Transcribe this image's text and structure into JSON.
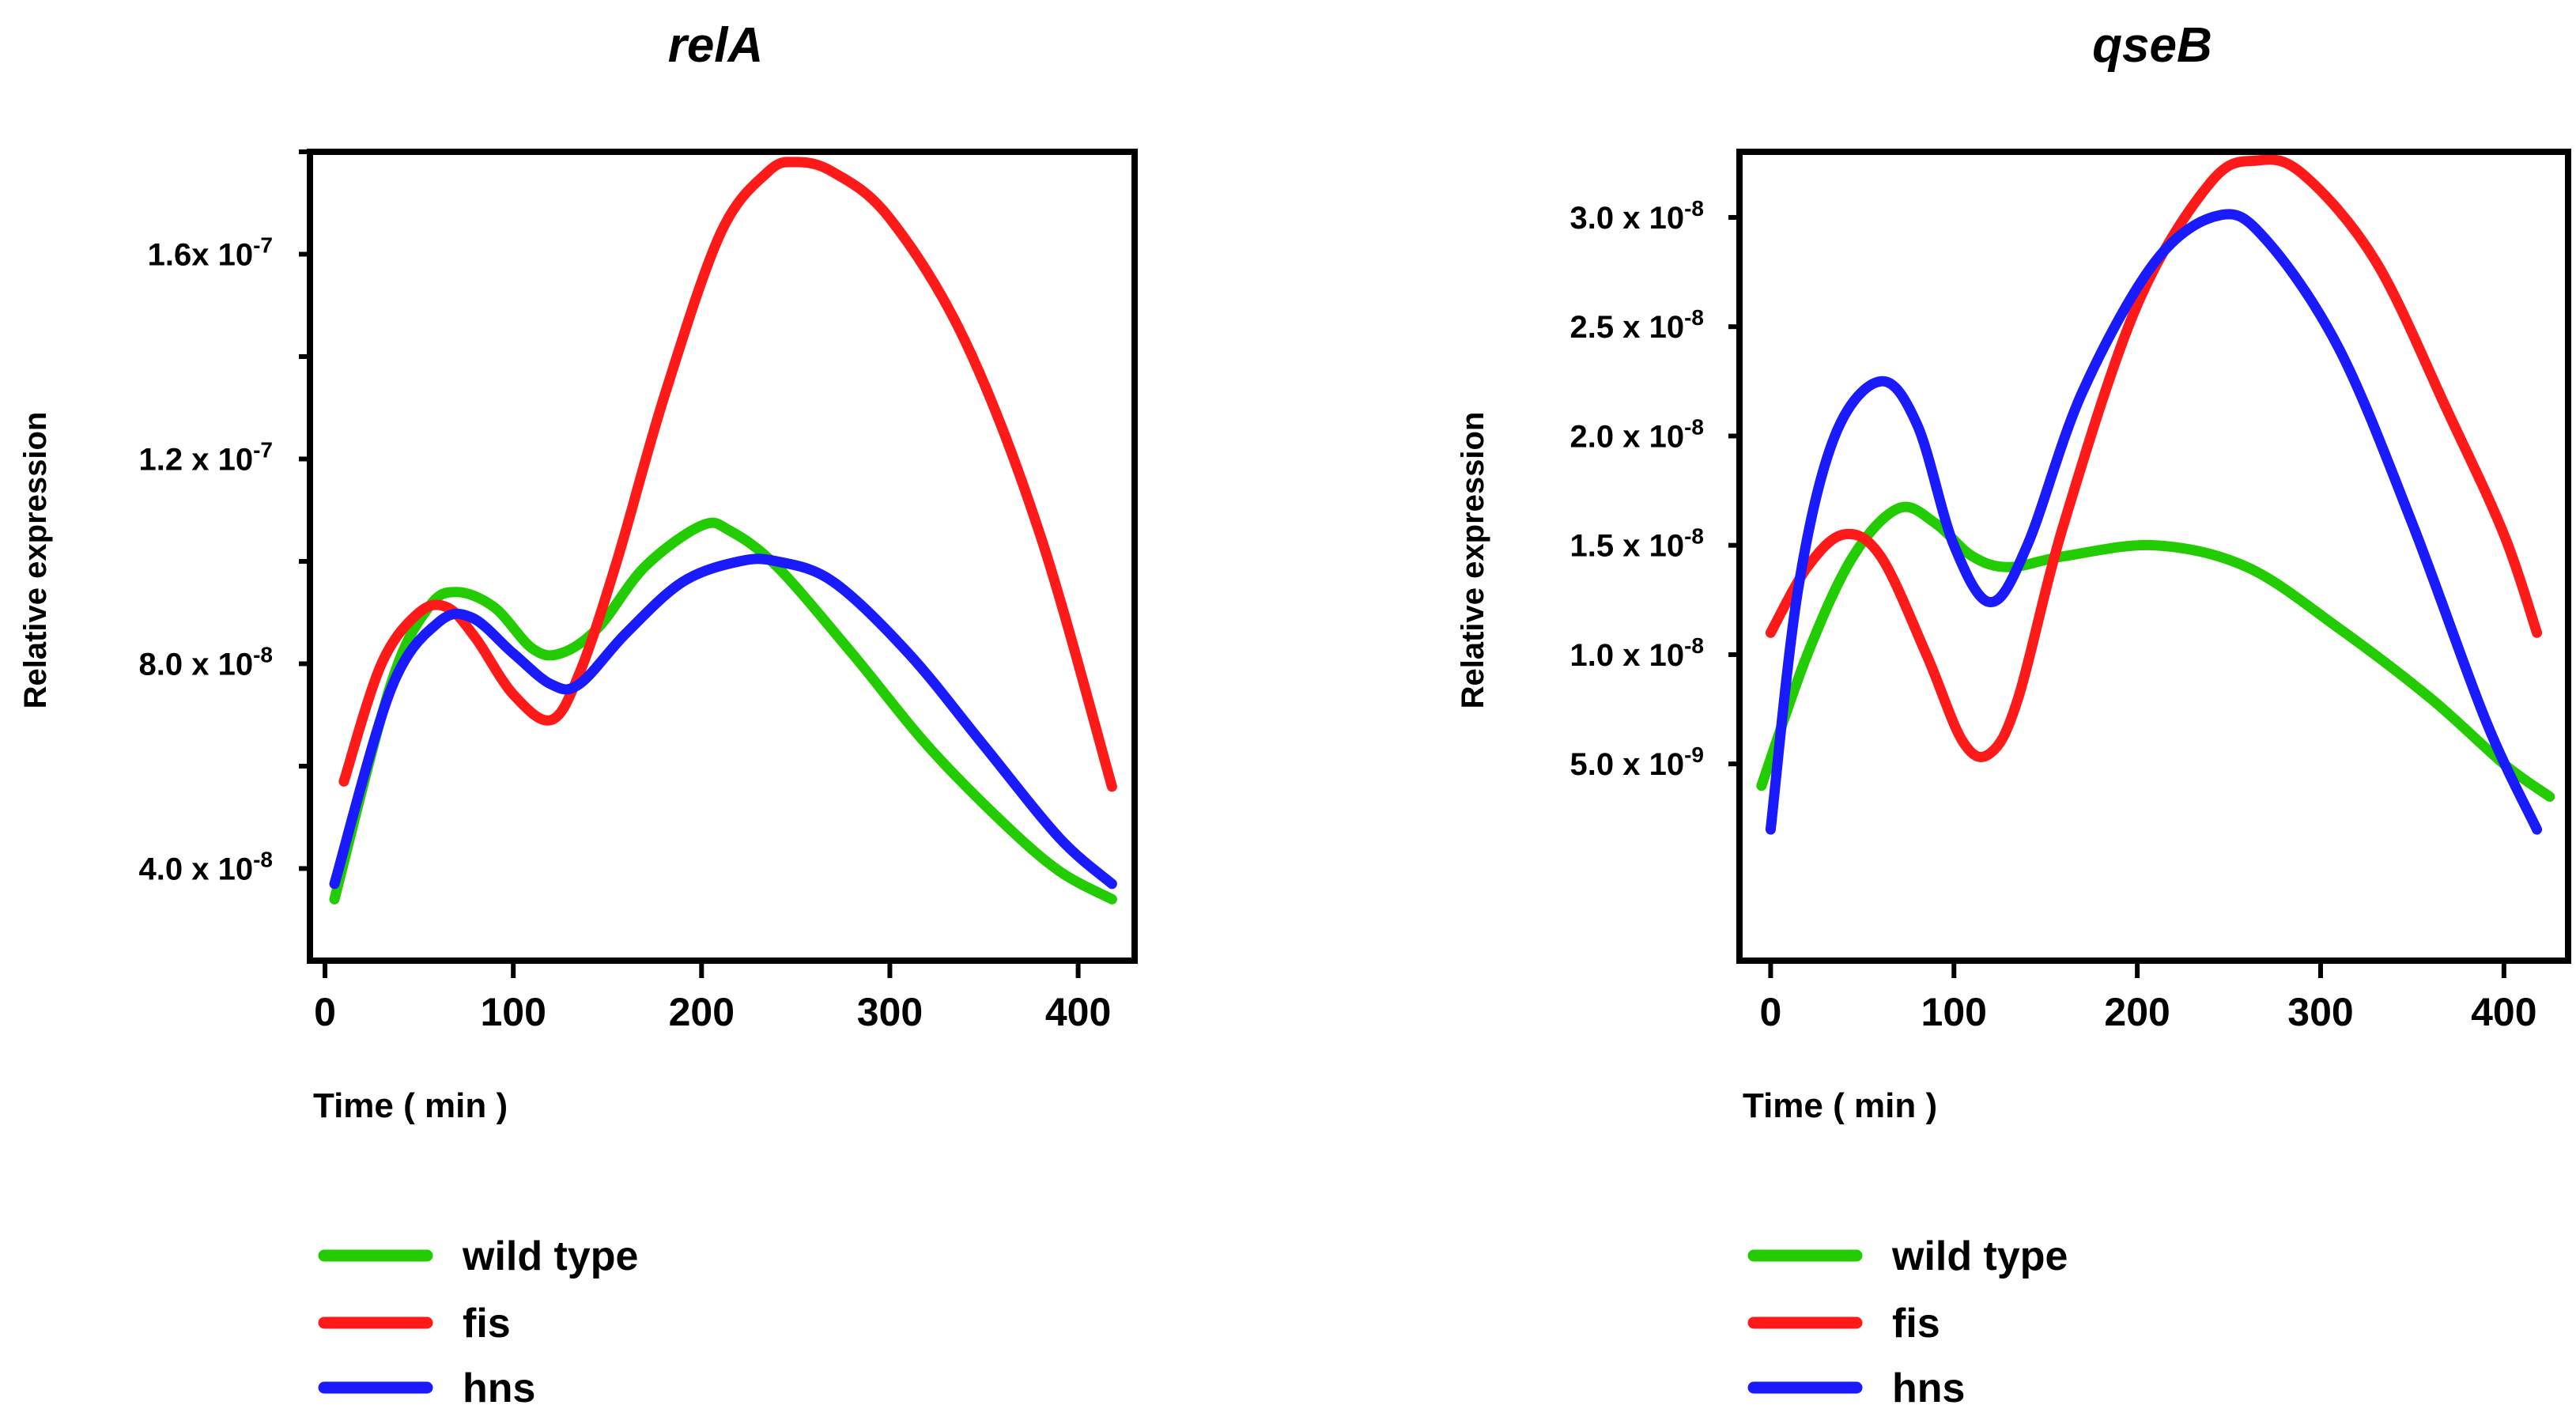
{
  "chart_data": [
    {
      "type": "line",
      "title": "relA",
      "xlabel": "Time ( min )",
      "ylabel": "Relative expression",
      "xlim": [
        -8,
        430
      ],
      "ylim": [
        2.2e-08,
        1.8e-07
      ],
      "xticks": [
        0,
        100,
        200,
        300,
        400
      ],
      "xtick_labels": [
        "0",
        "100",
        "200",
        "300",
        "400"
      ],
      "yticks": [
        4e-08,
        8e-08,
        1.2e-07,
        1.6e-07
      ],
      "ytick_labels": [
        {
          "mantissa": "4.0 x 10",
          "exponent": "-8"
        },
        {
          "mantissa": "8.0 x 10",
          "exponent": "-8"
        },
        {
          "mantissa": "1.2 x 10",
          "exponent": "-7"
        },
        {
          "mantissa": "1.6x 10",
          "exponent": "-7"
        }
      ],
      "yminor": [
        2e-08,
        6e-08,
        1e-07,
        1.4e-07,
        1.8e-07
      ],
      "series": [
        {
          "name": "wild type",
          "color": "#22cc00",
          "x": [
            5,
            35,
            55,
            70,
            90,
            110,
            125,
            145,
            170,
            200,
            215,
            240,
            280,
            320,
            360,
            390,
            418
          ],
          "y": [
            3.4e-08,
            7.6e-08,
            9.1e-08,
            9.4e-08,
            9.1e-08,
            8.3e-08,
            8.2e-08,
            8.7e-08,
            9.9e-08,
            1.07e-07,
            1.06e-07,
            9.9e-08,
            8.2e-08,
            6.4e-08,
            4.9e-08,
            3.95e-08,
            3.4e-08
          ]
        },
        {
          "name": "fis",
          "color": "#ff1a1a",
          "x": [
            10,
            30,
            50,
            65,
            80,
            100,
            120,
            135,
            155,
            180,
            210,
            235,
            250,
            270,
            300,
            340,
            380,
            418
          ],
          "y": [
            5.7e-08,
            8e-08,
            9e-08,
            9.1e-08,
            8.5e-08,
            7.4e-08,
            6.9e-08,
            7.8e-08,
            1e-07,
            1.32e-07,
            1.64e-07,
            1.76e-07,
            1.78e-07,
            1.76e-07,
            1.67e-07,
            1.43e-07,
            1.05e-07,
            5.6e-08
          ]
        },
        {
          "name": "hns",
          "color": "#1a1aff",
          "x": [
            5,
            35,
            60,
            78,
            100,
            120,
            135,
            160,
            190,
            220,
            240,
            270,
            310,
            350,
            390,
            418
          ],
          "y": [
            3.7e-08,
            7.5e-08,
            8.8e-08,
            8.9e-08,
            8.2e-08,
            7.6e-08,
            7.6e-08,
            8.6e-08,
            9.6e-08,
            1e-07,
            1e-07,
            9.6e-08,
            8.2e-08,
            6.4e-08,
            4.6e-08,
            3.7e-08
          ]
        }
      ],
      "legend": [
        "wild type",
        "fis",
        "hns"
      ]
    },
    {
      "type": "line",
      "title": "qseB",
      "xlabel": "Time ( min )",
      "ylabel": "Relative expression",
      "xlim": [
        -17,
        435
      ],
      "ylim": [
        -4e-09,
        3.3e-08
      ],
      "xticks": [
        0,
        100,
        200,
        300,
        400
      ],
      "xtick_labels": [
        "0",
        "100",
        "200",
        "300",
        "400"
      ],
      "yticks": [
        5e-09,
        1e-08,
        1.5e-08,
        2e-08,
        2.5e-08,
        3e-08
      ],
      "ytick_labels": [
        {
          "mantissa": "5.0 x 10",
          "exponent": "-9"
        },
        {
          "mantissa": "1.0 x 10",
          "exponent": "-8"
        },
        {
          "mantissa": "1.5 x 10",
          "exponent": "-8"
        },
        {
          "mantissa": "2.0 x 10",
          "exponent": "-8"
        },
        {
          "mantissa": "2.5 x 10",
          "exponent": "-8"
        },
        {
          "mantissa": "3.0 x 10",
          "exponent": "-8"
        }
      ],
      "yminor": [],
      "series": [
        {
          "name": "wild type",
          "color": "#22cc00",
          "x": [
            -5,
            20,
            45,
            70,
            90,
            110,
            130,
            160,
            210,
            260,
            310,
            360,
            400,
            425
          ],
          "y": [
            4e-09,
            1e-08,
            1.45e-08,
            1.67e-08,
            1.6e-08,
            1.45e-08,
            1.4e-08,
            1.45e-08,
            1.5e-08,
            1.4e-08,
            1.12e-08,
            8e-09,
            5e-09,
            3.5e-09
          ]
        },
        {
          "name": "fis",
          "color": "#ff1a1a",
          "x": [
            0,
            20,
            40,
            60,
            85,
            105,
            120,
            135,
            160,
            200,
            240,
            265,
            290,
            330,
            370,
            400,
            418
          ],
          "y": [
            1.1e-08,
            1.4e-08,
            1.55e-08,
            1.45e-08,
            1e-08,
            6e-09,
            5.5e-09,
            8e-09,
            1.6e-08,
            2.6e-08,
            3.16e-08,
            3.26e-08,
            3.2e-08,
            2.8e-08,
            2.1e-08,
            1.55e-08,
            1.1e-08
          ]
        },
        {
          "name": "hns",
          "color": "#1a1aff",
          "x": [
            0,
            15,
            35,
            60,
            80,
            100,
            120,
            140,
            170,
            210,
            245,
            270,
            310,
            350,
            390,
            418
          ],
          "y": [
            2e-09,
            1.3e-08,
            2e-08,
            2.25e-08,
            2.05e-08,
            1.5e-08,
            1.24e-08,
            1.5e-08,
            2.2e-08,
            2.8e-08,
            3.01e-08,
            2.9e-08,
            2.4e-08,
            1.6e-08,
            7e-09,
            2e-09
          ]
        }
      ],
      "legend": [
        "wild type",
        "fis",
        "hns"
      ]
    }
  ]
}
